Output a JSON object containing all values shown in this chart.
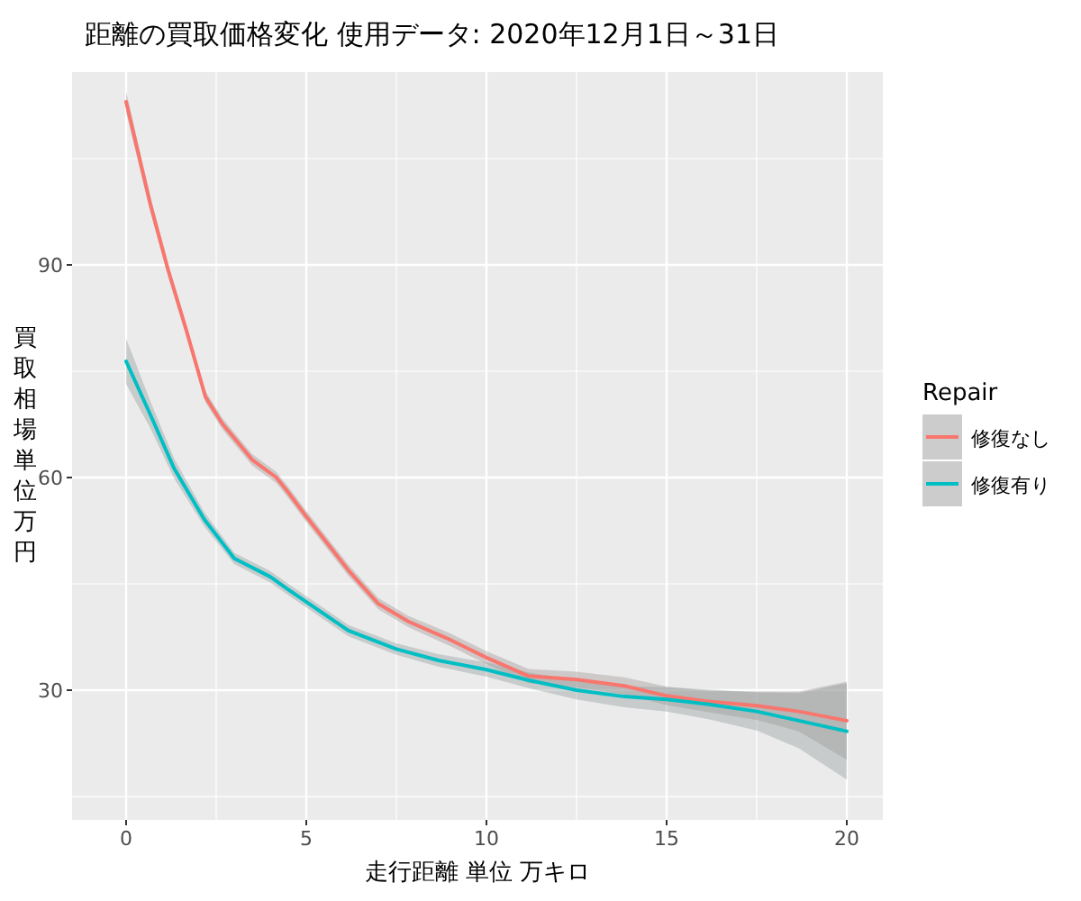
{
  "chart_data": {
    "type": "line",
    "title": "距離の買取価格変化 使用データ: 2020年12月1日～31日",
    "xlabel": "走行距離 単位 万キロ",
    "ylabel": "買取相場単位万円",
    "legend_title": "Repair",
    "legend": "right",
    "grid": true,
    "marker": "none",
    "line_style": "solid",
    "xlim": [
      -1.5,
      21
    ],
    "ylim": [
      11.7,
      117.2
    ],
    "xticks": [
      0,
      5,
      10,
      15,
      20
    ],
    "yticks": [
      30,
      60,
      90
    ],
    "series": [
      {
        "name": "修復なし",
        "color": "#f8766d",
        "x": [
          0,
          0.67,
          1.17,
          1.67,
          2.2,
          2.67,
          3.5,
          4.17,
          4.5,
          5,
          6.17,
          7,
          7.83,
          9,
          10,
          11.17,
          12.5,
          13.83,
          15,
          16.17,
          17.5,
          18.67,
          20
        ],
        "values": [
          113,
          98.6,
          89.2,
          80.8,
          71.4,
          67.6,
          62.5,
          60,
          57.9,
          54.5,
          46.9,
          42.2,
          39.7,
          37.1,
          34.6,
          32,
          31.5,
          30.6,
          29.2,
          28.4,
          27.8,
          27,
          25.7
        ],
        "lower": [
          111.5,
          97.5,
          88.3,
          80,
          70.6,
          66.8,
          61.7,
          59.2,
          57.1,
          53.7,
          46.1,
          41.4,
          38.9,
          36.2,
          33.7,
          31,
          30.4,
          29.4,
          27.9,
          26.9,
          25.8,
          24.2,
          20.2
        ],
        "upper": [
          114.5,
          99.7,
          90.1,
          81.6,
          72.2,
          68.4,
          63.3,
          60.8,
          58.7,
          55.3,
          47.7,
          43,
          40.5,
          38,
          35.5,
          33,
          32.6,
          31.8,
          30.5,
          29.9,
          29.8,
          29.8,
          31.2
        ]
      },
      {
        "name": "修復有り",
        "color": "#00bfc4",
        "x": [
          0,
          0.67,
          1.33,
          2.17,
          3,
          4,
          4.5,
          6.17,
          7.5,
          8.67,
          10,
          11.17,
          12.5,
          13.83,
          15,
          16.17,
          17.5,
          18.67,
          20
        ],
        "values": [
          76.4,
          68.9,
          61.3,
          54.1,
          48.6,
          46,
          44.2,
          38.4,
          35.8,
          34.2,
          32.9,
          31.4,
          30,
          29.1,
          28.7,
          28,
          27,
          25.7,
          24.2
        ],
        "lower": [
          73.2,
          67,
          59.9,
          53.1,
          47.8,
          45.2,
          43.4,
          37.6,
          35,
          33.3,
          31.9,
          30.3,
          28.7,
          27.6,
          27,
          25.9,
          24.3,
          21.8,
          17.4
        ],
        "upper": [
          79.6,
          70.8,
          62.7,
          55.1,
          49.4,
          46.8,
          45,
          39.2,
          36.6,
          35.1,
          33.9,
          32.5,
          31.3,
          30.6,
          30.4,
          30.1,
          29.7,
          29.6,
          31
        ]
      }
    ]
  }
}
